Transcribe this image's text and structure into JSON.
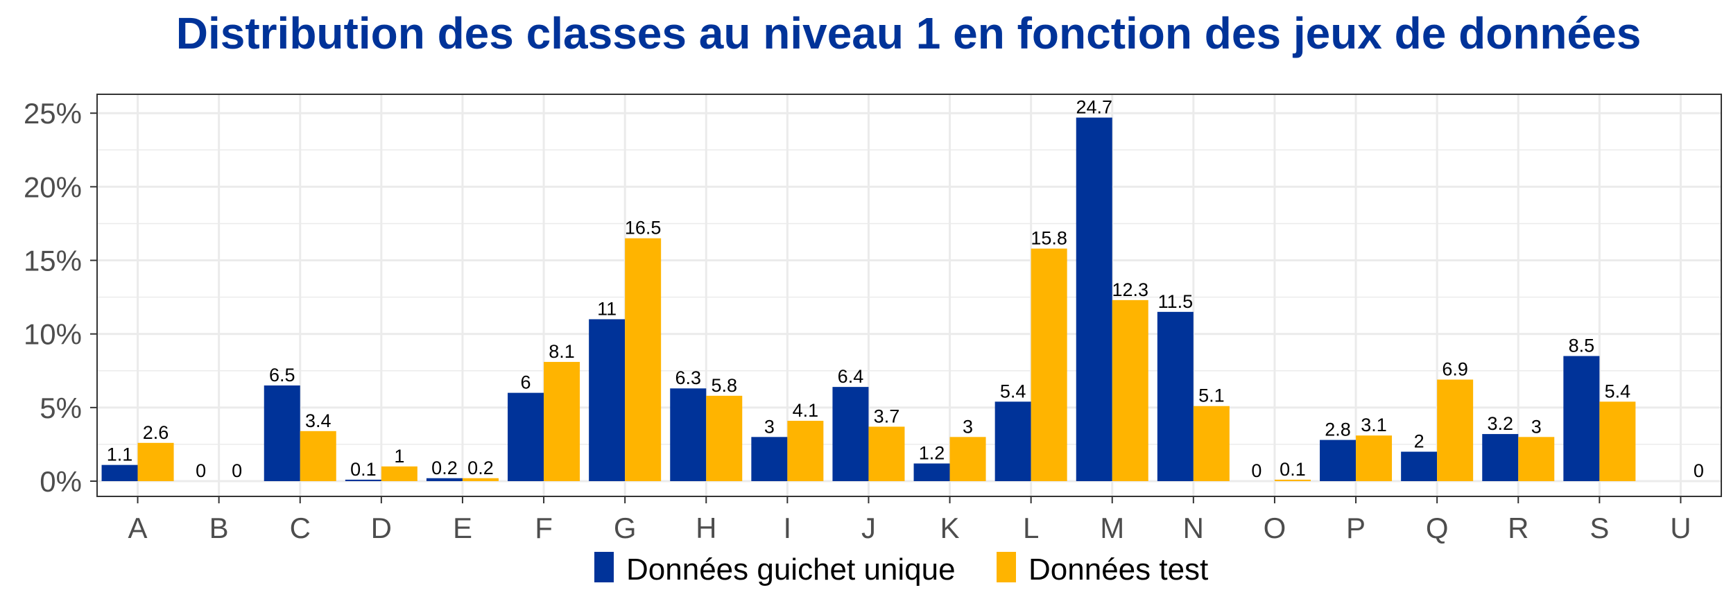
{
  "colors": {
    "series_1": "#003399",
    "series_2": "#FFB400",
    "title": "#003399",
    "grid": "#EBEBEB",
    "axis": "#333333"
  },
  "chart_data": {
    "type": "bar",
    "title": "Distribution des classes au niveau 1 en fonction des jeux de données",
    "xlabel": "",
    "ylabel": "",
    "ylim": [
      0,
      26
    ],
    "y_ticks": [
      0,
      5,
      10,
      15,
      20,
      25
    ],
    "y_tick_labels": [
      "0%",
      "5%",
      "10%",
      "15%",
      "20%",
      "25%"
    ],
    "grid": true,
    "legend_position": "bottom",
    "categories": [
      "A",
      "B",
      "C",
      "D",
      "E",
      "F",
      "G",
      "H",
      "I",
      "J",
      "K",
      "L",
      "M",
      "N",
      "O",
      "P",
      "Q",
      "R",
      "S",
      "U"
    ],
    "series": [
      {
        "name": "Données guichet unique",
        "values": [
          1.1,
          0,
          6.5,
          0.1,
          0.2,
          6,
          11,
          6.3,
          3,
          6.4,
          1.2,
          5.4,
          24.7,
          11.5,
          0,
          2.8,
          2,
          3.2,
          8.5,
          null
        ],
        "labels": [
          "1.1",
          "0",
          "6.5",
          "0.1",
          "0.2",
          "6",
          "11",
          "6.3",
          "3",
          "6.4",
          "1.2",
          "5.4",
          "24.7",
          "11.5",
          "0",
          "2.8",
          "2",
          "3.2",
          "8.5",
          ""
        ]
      },
      {
        "name": "Données test",
        "values": [
          2.6,
          0,
          3.4,
          1,
          0.2,
          8.1,
          16.5,
          5.8,
          4.1,
          3.7,
          3,
          15.8,
          12.3,
          5.1,
          0.1,
          3.1,
          6.9,
          3,
          5.4,
          0
        ],
        "labels": [
          "2.6",
          "0",
          "3.4",
          "1",
          "0.2",
          "8.1",
          "16.5",
          "5.8",
          "4.1",
          "3.7",
          "3",
          "15.8",
          "12.3",
          "5.1",
          "0.1",
          "3.1",
          "6.9",
          "3",
          "5.4",
          "0"
        ]
      }
    ]
  }
}
